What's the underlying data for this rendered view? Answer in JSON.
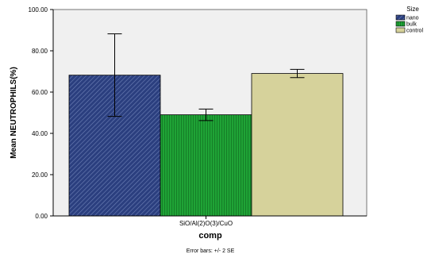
{
  "chart_data": {
    "type": "bar",
    "categories": [
      "SiO/Al(2)O(3)/CuO"
    ],
    "series": [
      {
        "name": "nano",
        "values": [
          68.2
        ],
        "error_low": [
          48.2
        ],
        "error_high": [
          88.2
        ],
        "color": "#2b3f7f"
      },
      {
        "name": "bulk",
        "values": [
          49.0
        ],
        "error_low": [
          46.2
        ],
        "error_high": [
          51.8
        ],
        "color": "#1fa336"
      },
      {
        "name": "control",
        "values": [
          69.0
        ],
        "error_low": [
          67.0
        ],
        "error_high": [
          71.0
        ],
        "color": "#d6d29b"
      }
    ],
    "xlabel": "comp",
    "ylabel": "Mean NEUTROPHILS(%)",
    "ylim": [
      0,
      100
    ],
    "yticks": [
      0,
      20,
      40,
      60,
      80,
      100
    ],
    "ytick_labels": [
      "0.00",
      "20.00",
      "40.00",
      "60.00",
      "80.00",
      "100.00"
    ],
    "legend_title": "Size",
    "legend_position": "top-right",
    "footnote": "Error bars: +/- 2 SE",
    "grid": false,
    "plot_background": "#f0f0f0"
  }
}
